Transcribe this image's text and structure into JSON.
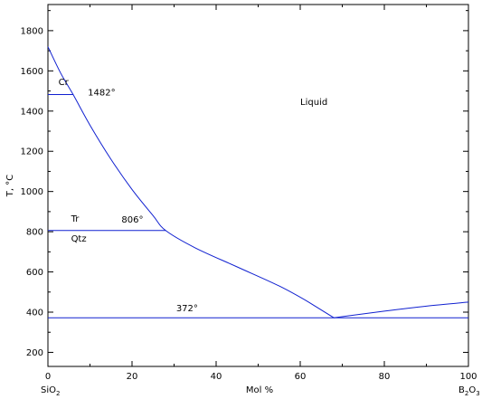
{
  "chart_data": {
    "type": "line",
    "title": "",
    "xlabel": "Mol %",
    "ylabel": "T, °C",
    "xlim": [
      0,
      100
    ],
    "ylim": [
      130,
      1930
    ],
    "x_ticks": [
      0,
      20,
      40,
      60,
      80,
      100
    ],
    "y_ticks": [
      200,
      400,
      600,
      800,
      1000,
      1200,
      1400,
      1600,
      1800
    ],
    "x_end_labels": {
      "left": {
        "main": "SiO",
        "sub": "2"
      },
      "right": {
        "main": "B",
        "sub1": "2",
        "mid": "O",
        "sub2": "3"
      }
    },
    "grid": false,
    "liquidus": [
      {
        "x": 0,
        "y": 1720
      },
      {
        "x": 3,
        "y": 1590
      },
      {
        "x": 6,
        "y": 1482
      },
      {
        "x": 10,
        "y": 1330
      },
      {
        "x": 15,
        "y": 1160
      },
      {
        "x": 20,
        "y": 1010
      },
      {
        "x": 25,
        "y": 880
      },
      {
        "x": 28,
        "y": 806
      },
      {
        "x": 35,
        "y": 720
      },
      {
        "x": 45,
        "y": 625
      },
      {
        "x": 55,
        "y": 530
      },
      {
        "x": 62,
        "y": 450
      },
      {
        "x": 68,
        "y": 372
      },
      {
        "x": 80,
        "y": 405
      },
      {
        "x": 90,
        "y": 430
      },
      {
        "x": 100,
        "y": 450
      }
    ],
    "isotherms": [
      {
        "label": "1482°",
        "y": 1482,
        "x_start": 0,
        "x_end": 6
      },
      {
        "label": "806°",
        "y": 806,
        "x_start": 0,
        "x_end": 28
      },
      {
        "label": "372°",
        "y": 372,
        "x_start": 0,
        "x_end": 100
      }
    ],
    "annotations": [
      {
        "text": "Liquid",
        "x": 60,
        "y": 1430
      },
      {
        "text": "Cr",
        "x": 2.5,
        "y": 1530
      },
      {
        "text": "Tr",
        "x": 5.5,
        "y": 850
      },
      {
        "text": "Qtz",
        "x": 5.5,
        "y": 750
      },
      {
        "text": "1482°",
        "x": 9.5,
        "y": 1477
      },
      {
        "text": "806°",
        "x": 17.5,
        "y": 845
      },
      {
        "text": "372°",
        "x": 30.5,
        "y": 405
      }
    ]
  }
}
